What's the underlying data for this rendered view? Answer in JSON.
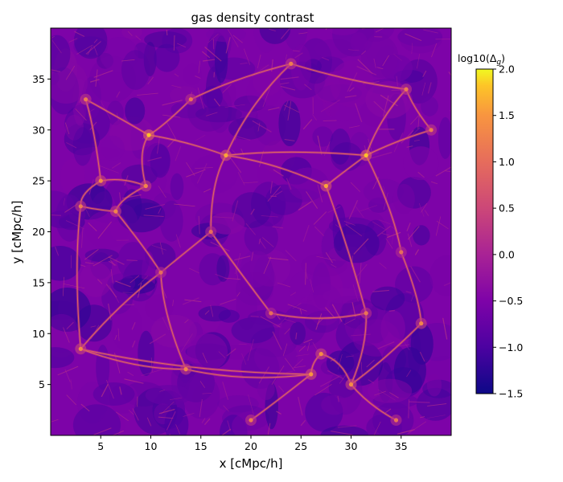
{
  "chart_data": {
    "type": "heatmap",
    "title": "gas density contrast",
    "xlabel": "x [cMpc/h]",
    "ylabel": "y [cMpc/h]",
    "xlim": [
      0,
      40
    ],
    "ylim": [
      0,
      40
    ],
    "xticks": [
      5,
      10,
      15,
      20,
      25,
      30,
      35
    ],
    "yticks": [
      5,
      10,
      15,
      20,
      25,
      30,
      35
    ],
    "grid": false,
    "colormap": "plasma",
    "colorbar": {
      "label": "log10(Δ",
      "label_sub": "g",
      "label_close": ")",
      "range": [
        -1.5,
        2.0
      ],
      "ticks": [
        -1.5,
        -1.0,
        -0.5,
        0.0,
        0.5,
        1.0,
        1.5,
        2.0
      ],
      "tick_labels": [
        "−1.5",
        "−1.0",
        "−0.5",
        "0.0",
        "0.5",
        "1.0",
        "1.5",
        "2.0"
      ],
      "placement": "right"
    },
    "field_description_values": {
      "typical_log_density": -0.5,
      "filament_log_density": 1.0,
      "peak_log_density": 2.0
    },
    "nodes": [
      {
        "x": 9.8,
        "y": 29.5,
        "v": 1.8
      },
      {
        "x": 17.5,
        "y": 27.5,
        "v": 1.6
      },
      {
        "x": 31.5,
        "y": 27.5,
        "v": 1.8
      },
      {
        "x": 5.0,
        "y": 25.0,
        "v": 1.4
      },
      {
        "x": 9.5,
        "y": 24.5,
        "v": 1.3
      },
      {
        "x": 27.5,
        "y": 24.5,
        "v": 1.6
      },
      {
        "x": 3.0,
        "y": 22.5,
        "v": 1.2
      },
      {
        "x": 6.5,
        "y": 22.0,
        "v": 1.3
      },
      {
        "x": 3.5,
        "y": 33.0,
        "v": 1.2
      },
      {
        "x": 24.0,
        "y": 36.5,
        "v": 1.2
      },
      {
        "x": 35.5,
        "y": 34.0,
        "v": 1.2
      },
      {
        "x": 37.0,
        "y": 11.0,
        "v": 1.3
      },
      {
        "x": 27.0,
        "y": 8.0,
        "v": 1.4
      },
      {
        "x": 26.0,
        "y": 6.0,
        "v": 1.5
      },
      {
        "x": 30.0,
        "y": 5.0,
        "v": 1.4
      },
      {
        "x": 3.0,
        "y": 8.5,
        "v": 1.4
      },
      {
        "x": 13.5,
        "y": 6.5,
        "v": 1.3
      },
      {
        "x": 20.0,
        "y": 1.5,
        "v": 1.2
      },
      {
        "x": 34.5,
        "y": 1.5,
        "v": 1.1
      },
      {
        "x": 31.5,
        "y": 12.0,
        "v": 1.1
      },
      {
        "x": 11.0,
        "y": 16.0,
        "v": 1.0
      },
      {
        "x": 16.0,
        "y": 20.0,
        "v": 1.0
      },
      {
        "x": 35.0,
        "y": 18.0,
        "v": 1.0
      },
      {
        "x": 22.0,
        "y": 12.0,
        "v": 1.0
      },
      {
        "x": 38.0,
        "y": 30.0,
        "v": 1.2
      },
      {
        "x": 14.0,
        "y": 33.0,
        "v": 1.1
      }
    ],
    "filaments": [
      [
        0,
        1
      ],
      [
        1,
        2
      ],
      [
        0,
        4
      ],
      [
        3,
        4
      ],
      [
        3,
        6
      ],
      [
        6,
        7
      ],
      [
        4,
        7
      ],
      [
        8,
        0
      ],
      [
        8,
        3
      ],
      [
        1,
        9
      ],
      [
        9,
        10
      ],
      [
        2,
        10
      ],
      [
        2,
        5
      ],
      [
        5,
        1
      ],
      [
        2,
        24
      ],
      [
        24,
        10
      ],
      [
        14,
        12
      ],
      [
        12,
        13
      ],
      [
        13,
        15
      ],
      [
        15,
        16
      ],
      [
        13,
        17
      ],
      [
        14,
        18
      ],
      [
        14,
        11
      ],
      [
        11,
        22
      ],
      [
        5,
        19
      ],
      [
        19,
        14
      ],
      [
        16,
        20
      ],
      [
        20,
        21
      ],
      [
        21,
        1
      ],
      [
        20,
        15
      ],
      [
        22,
        2
      ],
      [
        21,
        23
      ],
      [
        23,
        19
      ],
      [
        13,
        16
      ],
      [
        0,
        25
      ],
      [
        25,
        9
      ],
      [
        6,
        15
      ],
      [
        7,
        20
      ]
    ]
  }
}
